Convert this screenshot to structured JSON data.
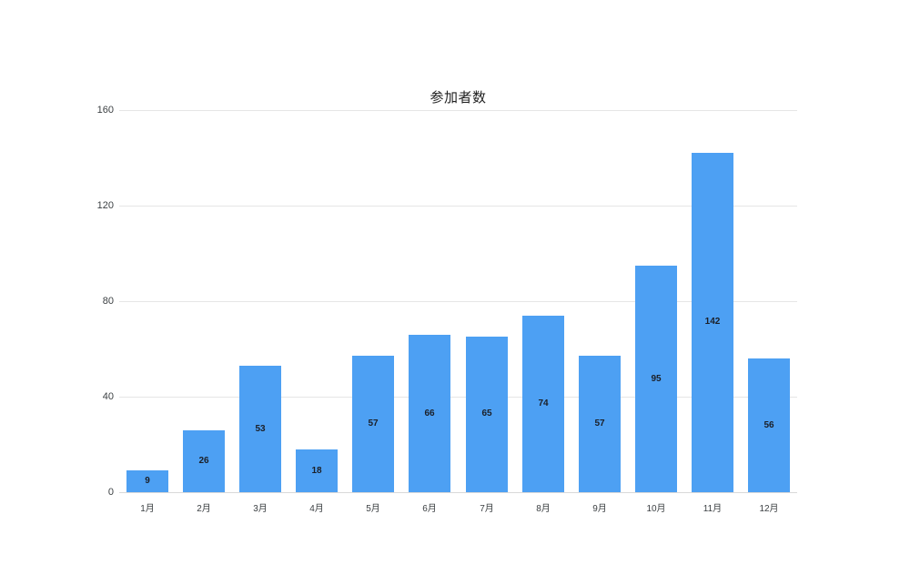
{
  "chart": {
    "title": "参加者数",
    "colors": {
      "bar": "#4DA0F3",
      "grid": "#e6e6e6",
      "baseline": "#d9d9d9",
      "axis_text": "#3c4043",
      "value_label": "#1b1f27",
      "title_text": "#212121",
      "background": "#ffffff"
    }
  },
  "chart_data": {
    "type": "bar",
    "title": "参加者数",
    "categories": [
      "1月",
      "2月",
      "3月",
      "4月",
      "5月",
      "6月",
      "7月",
      "8月",
      "9月",
      "10月",
      "11月",
      "12月"
    ],
    "values": [
      9,
      26,
      53,
      18,
      57,
      66,
      65,
      74,
      57,
      95,
      142,
      56
    ],
    "xlabel": "",
    "ylabel": "",
    "ylim": [
      0,
      160
    ],
    "yticks": [
      0,
      40,
      80,
      120,
      160
    ],
    "grid": true,
    "legend": "none",
    "value_labels": "inside-center"
  }
}
